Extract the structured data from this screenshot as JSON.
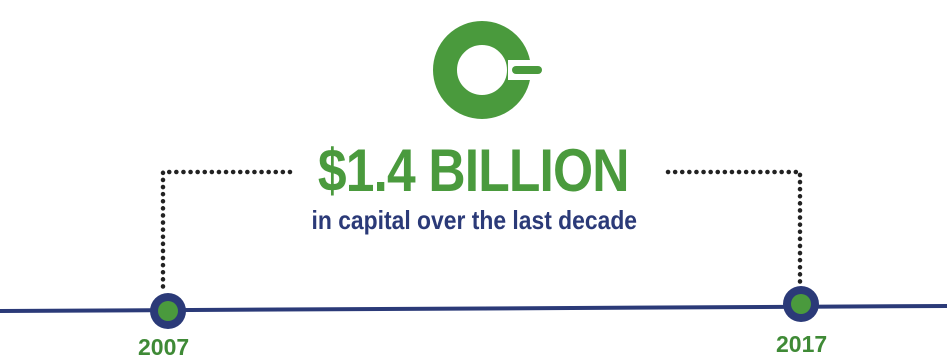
{
  "headline": "$1.4 BILLION",
  "subline": "in capital over the last decade",
  "timeline": {
    "start_year": "2007",
    "end_year": "2017"
  },
  "logo": {
    "icon": "green-ring-logo-icon"
  },
  "colors": {
    "green": "#4a9a3d",
    "navy": "#2b3a78",
    "dot": "#222222"
  }
}
